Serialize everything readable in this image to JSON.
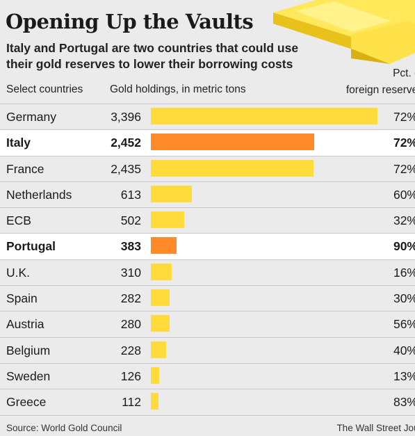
{
  "header": {
    "title": "Opening Up the Vaults",
    "subtitle": "Italy and Portugal are two countries that could use their gold reserves to lower their borrowing costs"
  },
  "columns": {
    "country": "Select countries",
    "holdings": "Gold holdings, in metric tons",
    "pct_line1": "Pct. of",
    "pct_line2": "foreign reserves"
  },
  "footer": {
    "source": "Source: World Gold Council",
    "credit": "The Wall Street Journal"
  },
  "colors": {
    "bar": "#ffdc3c",
    "highlight_bar": "#ff8a2a",
    "background": "#ebebeb",
    "highlight_row": "#ffffff"
  },
  "chart_data": {
    "type": "bar",
    "orientation": "horizontal",
    "categories": [
      "Germany",
      "Italy",
      "France",
      "Netherlands",
      "ECB",
      "Portugal",
      "U.K.",
      "Spain",
      "Austria",
      "Belgium",
      "Sweden",
      "Greece"
    ],
    "values": [
      3396,
      2452,
      2435,
      613,
      502,
      383,
      310,
      282,
      280,
      228,
      126,
      112
    ],
    "value_labels": [
      "3,396",
      "2,452",
      "2,435",
      "613",
      "502",
      "383",
      "310",
      "282",
      "280",
      "228",
      "126",
      "112"
    ],
    "pct_labels": [
      "72%",
      "72%",
      "72%",
      "60%",
      "32%",
      "90%",
      "16%",
      "30%",
      "56%",
      "40%",
      "13%",
      "83%"
    ],
    "pct_of_foreign_reserves": [
      72,
      72,
      72,
      60,
      32,
      90,
      16,
      30,
      56,
      40,
      13,
      83
    ],
    "highlighted": [
      "Italy",
      "Portugal"
    ],
    "xlim": [
      0,
      3396
    ]
  }
}
